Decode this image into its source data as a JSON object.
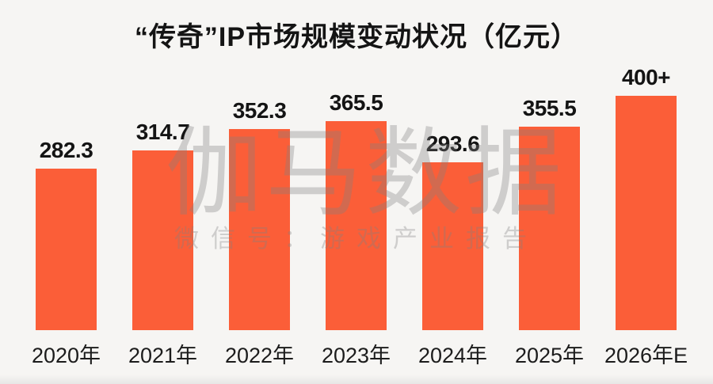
{
  "page": {
    "background": "#F6F5F3",
    "text_color": "#141414"
  },
  "chart_data": {
    "type": "bar",
    "title": "“传奇”IP市场规模变动状况（亿元）",
    "categories": [
      "2020年",
      "2021年",
      "2022年",
      "2023年",
      "2024年",
      "2025年",
      "2026年E"
    ],
    "values": [
      282.3,
      314.7,
      352.3,
      365.5,
      293.6,
      355.5,
      400
    ],
    "value_labels": [
      "282.3",
      "314.7",
      "352.3",
      "365.5",
      "293.6",
      "355.5",
      "400+"
    ],
    "plot_values": [
      282.3,
      314.7,
      352.3,
      365.5,
      293.6,
      355.5,
      410
    ],
    "bar_color": "#FB5E38",
    "text_color": "#141414",
    "xlabel": "",
    "ylabel": "",
    "ylim": [
      0,
      440
    ],
    "grid": false,
    "legend": false,
    "axis_lines": false
  },
  "watermark": {
    "main": "伽马数据",
    "sub": "微信号：游戏产业报告",
    "color_rgba": "rgba(130,130,130,0.34)"
  }
}
